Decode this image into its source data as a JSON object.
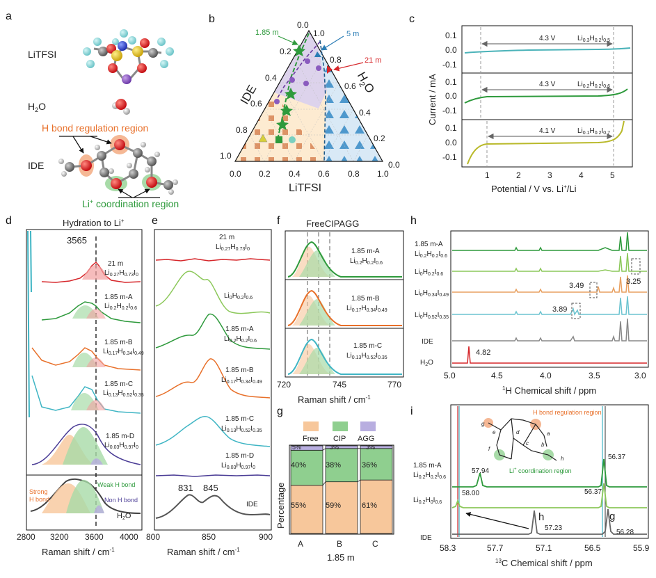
{
  "panels": {
    "a": "a",
    "b": "b",
    "c": "c",
    "d": "d",
    "e": "e",
    "f": "f",
    "g": "g",
    "h": "h",
    "i": "i"
  },
  "panel_a": {
    "molecule1": "LiTFSI",
    "molecule2": "H",
    "molecule2_sub": "2",
    "molecule2_end": "O",
    "molecule3": "IDE",
    "region_h_bond": "H bond regulation region",
    "region_li_pre": "Li",
    "region_li_sup": "+",
    "region_li_post": " coordination region"
  },
  "panel_b": {
    "axis_ide": "IDE",
    "axis_h2o_pre": "H",
    "axis_h2o_sub": "2",
    "axis_h2o_post": "O",
    "axis_litfsi": "LiTFSI",
    "ticks_bottom": [
      "0.0",
      "0.2",
      "0.4",
      "0.6",
      "0.8",
      "1.0"
    ],
    "ticks_left": [
      "0.0",
      "0.2",
      "0.4",
      "0.6",
      "0.8",
      "1.0"
    ],
    "ticks_right": [
      "1.0",
      "0.8",
      "0.6",
      "0.4",
      "0.2",
      "0.0"
    ],
    "label_185m": "1.85 m",
    "label_5m": "5 m",
    "label_21m": "21 m",
    "colors": {
      "label_185m": "#2e9a3c",
      "label_5m": "#2b7db5",
      "label_21m": "#d6262a"
    }
  },
  "panel_c": {
    "chart_data": {
      "type": "line",
      "xlabel": "Potential / V vs. Li+/Li",
      "ylabel": "Current / mA",
      "xlim": [
        0.2,
        5.6
      ],
      "x_ticks": [
        "1",
        "2",
        "3",
        "4",
        "5"
      ],
      "y_ticks": [
        "0.1",
        "0.0",
        "-0.1"
      ],
      "series": [
        {
          "name": "Li0.3H0.2I0.5",
          "window": "4.3 V",
          "window_x": [
            0.75,
            5.05
          ],
          "color": "#4bb3b9"
        },
        {
          "name": "Li0.2H0.2I0.6",
          "window": "4.3 V",
          "window_x": [
            0.75,
            5.05
          ],
          "color": "#2e9a3c"
        },
        {
          "name": "Li0.1H0.2I0.7",
          "window": "4.1 V",
          "window_x": [
            0.95,
            5.05
          ],
          "color": "#b9b92a"
        }
      ]
    },
    "xlabel_text": "Potential / V vs. Li",
    "xlabel_sup": "+",
    "xlabel_end": "/Li",
    "ylabel_text": "Current / mA",
    "trace1": {
      "pre": "Li",
      "s1": "0.3",
      "m1": "H",
      "s2": "0.2",
      "m2": "I",
      "s3": "0.5",
      "v": "4.3 V"
    },
    "trace2": {
      "pre": "Li",
      "s1": "0.2",
      "m1": "H",
      "s2": "0.2",
      "m2": "I",
      "s3": "0.6",
      "v": "4.3 V"
    },
    "trace3": {
      "pre": "Li",
      "s1": "0.1",
      "m1": "H",
      "s2": "0.2",
      "m2": "I",
      "s3": "0.7",
      "v": "4.1 V"
    }
  },
  "panel_d": {
    "chart_data": {
      "type": "line",
      "title": "Hydration to Li+",
      "xlabel": "Raman shift / cm-1",
      "x_ticks": [
        "2800",
        "3200",
        "3600",
        "4000"
      ],
      "peak_marker": "3565",
      "series": [
        {
          "name": "21 m",
          "formula": "Li0.27H0.73I0",
          "color": "#d6262a"
        },
        {
          "name": "1.85 m-A",
          "formula": "Li0.2H0.2I0.6",
          "color": "#2e9a3c"
        },
        {
          "name": "1.85 m-B",
          "formula": "Li0.17H0.34I0.49",
          "color": "#e8702a"
        },
        {
          "name": "1.85 m-C",
          "formula": "Li0.13H0.52I0.35",
          "color": "#3fb5c4"
        },
        {
          "name": "1.85 m-D",
          "formula": "Li0.03H0.97I0",
          "color": "#4b3d96"
        },
        {
          "name": "H2O",
          "formula": "",
          "color": "#555555"
        }
      ]
    },
    "title_pre": "Hydration to Li",
    "title_sup": "+",
    "peak": "3565",
    "s1": {
      "name": "21 m",
      "pre": "Li",
      "a": "0.27",
      "h": "H",
      "b": "0.73",
      "i": "I",
      "c": "0"
    },
    "s2": {
      "name": "1.85 m-A",
      "pre": "Li",
      "a": "0.2",
      "h": "H",
      "b": "0.2",
      "i": "I",
      "c": "0.6"
    },
    "s3": {
      "name": "1.85 m-B",
      "pre": "Li",
      "a": "0.17",
      "h": "H",
      "b": "0.34",
      "i": "I",
      "c": "0.49"
    },
    "s4": {
      "name": "1.85 m-C",
      "pre": "Li",
      "a": "0.13",
      "h": "H",
      "b": "0.52",
      "i": "I",
      "c": "0.35"
    },
    "s5": {
      "name": "1.85 m-D",
      "pre": "Li",
      "a": "0.03",
      "h": "H",
      "b": "0.97",
      "i": "I",
      "c": "0"
    },
    "strong1": "Strong",
    "strong2": "H bond",
    "weak": "Weak H bond",
    "non": "Non H bond",
    "h2o_pre": "H",
    "h2o_sub": "2",
    "h2o_post": "O",
    "xlabel_pre": "Raman shift / cm",
    "xlabel_sup": "-1",
    "ticks": [
      "2800",
      "3200",
      "3600",
      "4000"
    ]
  },
  "panel_e": {
    "chart_data": {
      "type": "line",
      "xlabel": "Raman shift / cm-1",
      "x_ticks": [
        "800",
        "850",
        "900"
      ],
      "peaks": [
        "831",
        "845"
      ]
    },
    "s1": {
      "name": "21 m",
      "pre": "Li",
      "a": "0.27",
      "h": "H",
      "b": "0.73",
      "i": "I",
      "c": "0"
    },
    "s2": {
      "pre": "Li",
      "a": "0",
      "h": "H",
      "b": "0.2",
      "i": "I",
      "c": "0.6"
    },
    "s3": {
      "name": "1.85 m-A",
      "pre": "Li",
      "a": "0.2",
      "h": "H",
      "b": "0.2",
      "i": "I",
      "c": "0.6"
    },
    "s4": {
      "name": "1.85 m-B",
      "pre": "Li",
      "a": "0.17",
      "h": "H",
      "b": "0.34",
      "i": "I",
      "c": "0.49"
    },
    "s5": {
      "name": "1.85 m-C",
      "pre": "Li",
      "a": "0.13",
      "h": "H",
      "b": "0.52",
      "i": "I",
      "c": "0.35"
    },
    "s6": {
      "name": "1.85 m-D",
      "pre": "Li",
      "a": "0.03",
      "h": "H",
      "b": "0.97",
      "i": "I",
      "c": "0"
    },
    "ide": "IDE",
    "peak1": "831",
    "peak2": "845",
    "xlabel_pre": "Raman shift / cm",
    "xlabel_sup": "-1",
    "ticks": [
      "800",
      "850",
      "900"
    ]
  },
  "panel_f": {
    "chart_data": {
      "type": "line",
      "title": "FreeCIPAGG",
      "xlabel": "Raman shift / cm-1",
      "x_ticks": [
        "720",
        "745",
        "770"
      ]
    },
    "title": "FreeCIPAGG",
    "s1": {
      "name": "1.85 m-A",
      "pre": "Li",
      "a": "0.2",
      "h": "H",
      "b": "0.2",
      "i": "I",
      "c": "0.6"
    },
    "s2": {
      "name": "1.85 m-B",
      "pre": "Li",
      "a": "0.17",
      "h": "H",
      "b": "0.34",
      "i": "I",
      "c": "0.49"
    },
    "s3": {
      "name": "1.85 m-C",
      "pre": "Li",
      "a": "0.13",
      "h": "H",
      "b": "0.52",
      "i": "I",
      "c": "0.35"
    },
    "xlabel_pre": "Raman shift / cm",
    "xlabel_sup": "-1",
    "ticks": [
      "720",
      "745",
      "770"
    ]
  },
  "panel_g": {
    "chart_data": {
      "type": "bar",
      "stacked": true,
      "categories": [
        "A",
        "B",
        "C"
      ],
      "series": [
        {
          "name": "Free",
          "values": [
            55,
            59,
            61
          ],
          "color": "#f7c79b"
        },
        {
          "name": "CIP",
          "values": [
            40,
            38,
            36
          ],
          "color": "#8fcf8f"
        },
        {
          "name": "AGG",
          "values": [
            5,
            3,
            3
          ],
          "color": "#b8aee0"
        }
      ],
      "ylabel": "Percentage",
      "xlabel": "1.85 m"
    },
    "legend": [
      "Free",
      "CIP",
      "AGG"
    ],
    "labels_free": [
      "55%",
      "59%",
      "61%"
    ],
    "labels_cip": [
      "40%",
      "38%",
      "36%"
    ],
    "labels_agg": [
      "5%",
      "3%",
      "3%"
    ],
    "categories": [
      "A",
      "B",
      "C"
    ],
    "ylabel": "Percentage",
    "xlabel": "1.85 m"
  },
  "panel_h": {
    "chart_data": {
      "type": "line",
      "xlabel": "1H Chemical shift / ppm",
      "x_ticks": [
        "5.0",
        "4.5",
        "4.0",
        "3.5",
        "3.0"
      ],
      "annotations": [
        "3.25",
        "3.49",
        "3.89",
        "4.82"
      ]
    },
    "s1": {
      "name": "1.85 m-A",
      "pre": "Li",
      "a": "0.2",
      "h": "H",
      "b": "0.2",
      "i": "I",
      "c": "0.6"
    },
    "s2": {
      "pre": "Li",
      "a": "0",
      "h": "H",
      "b": "0.2",
      "i": "I",
      "c": "0.6"
    },
    "s3": {
      "pre": "Li",
      "a": "0",
      "h": "H",
      "b": "0.34",
      "i": "I",
      "c": "0.49"
    },
    "s4": {
      "pre": "Li",
      "a": "0",
      "h": "H",
      "b": "0.52",
      "i": "I",
      "c": "0.35"
    },
    "ide": "IDE",
    "h2o_pre": "H",
    "h2o_sub": "2",
    "h2o_post": "O",
    "ann1": "3.25",
    "ann2": "3.49",
    "ann3": "3.89",
    "ann4": "4.82",
    "xlabel_sup": "1",
    "xlabel_post": "H Chemical shift / ppm",
    "ticks": [
      "5.0",
      "4.5",
      "4.0",
      "3.5",
      "3.0"
    ]
  },
  "panel_i": {
    "chart_data": {
      "type": "line",
      "xlabel": "13C Chemical shift / ppm",
      "x_ticks": [
        "58.3",
        "57.7",
        "57.1",
        "56.5",
        "55.9"
      ],
      "annotations": [
        "57.94",
        "56.37",
        "58.00",
        "56.37",
        "57.23",
        "56.28"
      ]
    },
    "s1": {
      "name": "1.85 m-A",
      "pre": "Li",
      "a": "0.2",
      "h": "H",
      "b": "0.2",
      "i": "I",
      "c": "0.6"
    },
    "s2": {
      "pre": "Li",
      "a": "0.2",
      "h": "H",
      "b": "0",
      "i": "I",
      "c": "0.6"
    },
    "ide": "IDE",
    "v1": "57.94",
    "v2": "56.37",
    "v3": "58.00",
    "v4": "56.37",
    "v5": "57.23",
    "v6": "56.28",
    "lab_h": "h",
    "lab_g": "g",
    "inset_h_bond": "H bond regulation region",
    "inset_li_pre": "Li",
    "inset_li_sup": "+",
    "inset_li_post": " coordination region",
    "atoms": [
      "g",
      "e",
      "f",
      "d",
      "c",
      "a",
      "b",
      "h"
    ],
    "xlabel_sup": "13",
    "xlabel_post": "C Chemical shift / ppm",
    "ticks": [
      "58.3",
      "57.7",
      "57.1",
      "56.5",
      "55.9"
    ]
  }
}
